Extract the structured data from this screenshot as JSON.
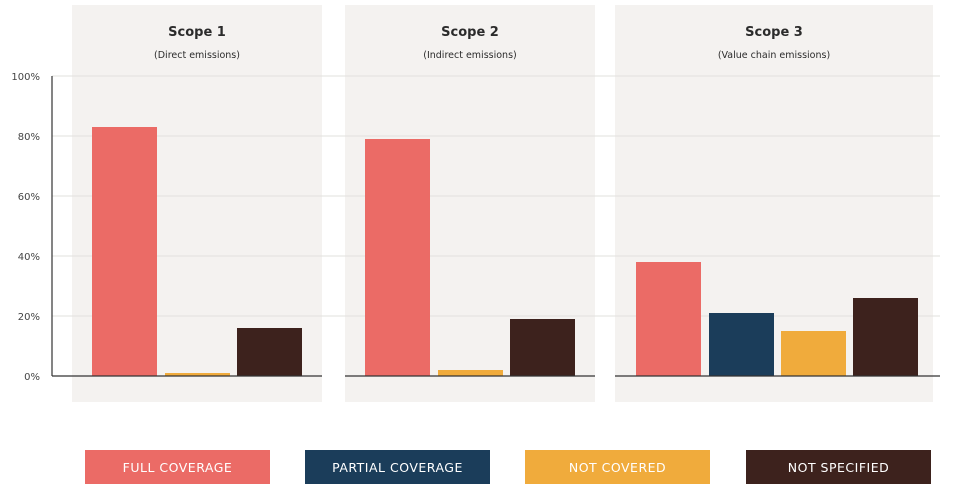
{
  "chart_data": {
    "type": "bar",
    "ylim": [
      0,
      100
    ],
    "yticks": [
      "0%",
      "20%",
      "40%",
      "60%",
      "80%",
      "100%"
    ],
    "ytick_values": [
      0,
      20,
      40,
      60,
      80,
      100
    ],
    "grid": true,
    "legend_placement": "bottom",
    "panels": [
      {
        "title": "Scope 1",
        "subtitle": "(Direct emissions)"
      },
      {
        "title": "Scope 2",
        "subtitle": "(Indirect emissions)"
      },
      {
        "title": "Scope 3",
        "subtitle": "(Value chain emissions)"
      }
    ],
    "series": [
      {
        "name": "FULL COVERAGE",
        "color": "#eb6b66",
        "values": [
          83,
          79,
          38
        ]
      },
      {
        "name": "PARTIAL COVERAGE",
        "color": "#1b3d5a",
        "values": [
          0,
          0,
          21
        ]
      },
      {
        "name": "NOT COVERED",
        "color": "#f0ab3c",
        "values": [
          1,
          2,
          15
        ]
      },
      {
        "name": "NOT SPECIFIED",
        "color": "#3d221d",
        "values": [
          16,
          19,
          26
        ]
      }
    ]
  }
}
